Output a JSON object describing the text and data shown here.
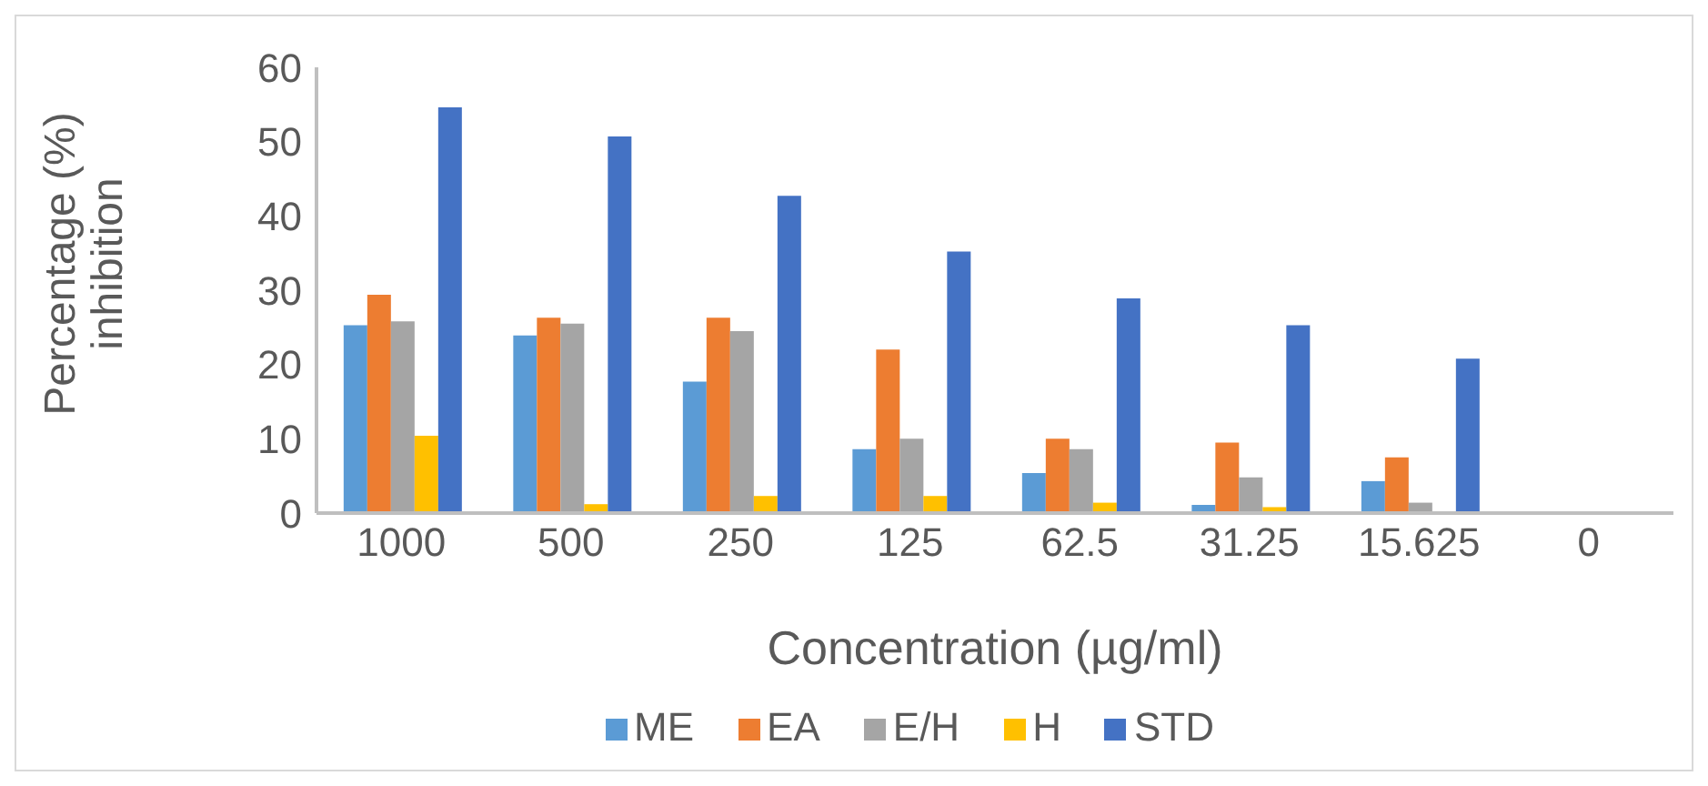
{
  "chart_data": {
    "type": "bar",
    "xlabel": "Concentration  (µg/ml)",
    "ylabel": "Percentage  (%) inhibition",
    "categories": [
      "1000",
      "500",
      "250",
      "125",
      "62.5",
      "31.25",
      "15.625",
      "0"
    ],
    "series": [
      {
        "name": "ME",
        "color": "#5b9bd5",
        "values": [
          25.3,
          23.9,
          17.7,
          8.6,
          5.4,
          1.1,
          4.3,
          0
        ]
      },
      {
        "name": "EA",
        "color": "#ed7d31",
        "values": [
          29.4,
          26.3,
          26.3,
          22.0,
          10.0,
          9.5,
          7.5,
          0
        ]
      },
      {
        "name": "E/H",
        "color": "#a5a5a5",
        "values": [
          25.8,
          25.5,
          24.5,
          10.0,
          8.6,
          4.8,
          1.4,
          0
        ]
      },
      {
        "name": "H",
        "color": "#ffc000",
        "values": [
          10.4,
          1.2,
          2.3,
          2.3,
          1.4,
          0.8,
          0,
          0
        ]
      },
      {
        "name": "STD",
        "color": "#4472c4",
        "values": [
          54.6,
          50.7,
          42.7,
          35.2,
          28.9,
          25.3,
          20.8,
          0
        ]
      }
    ],
    "ylim": [
      0,
      60
    ],
    "yticks": [
      0,
      10,
      20,
      30,
      40,
      50,
      60
    ],
    "grid": false,
    "legend": "bottom"
  }
}
